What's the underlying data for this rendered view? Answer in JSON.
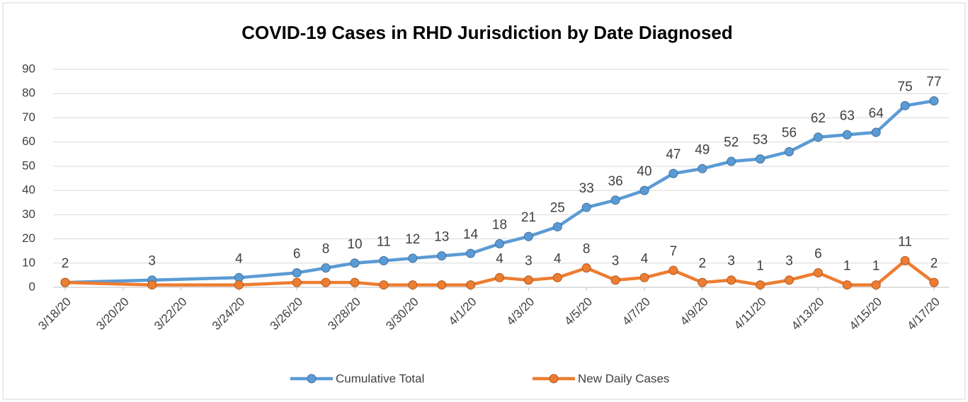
{
  "chart_data": {
    "type": "line",
    "title": "COVID-19 Cases in RHD Jurisdiction by Date Diagnosed",
    "x": [
      "3/18/20",
      "3/21/20",
      "3/24/20",
      "3/26/20",
      "3/27/20",
      "3/28/20",
      "3/29/20",
      "3/30/20",
      "3/31/20",
      "4/1/20",
      "4/2/20",
      "4/3/20",
      "4/4/20",
      "4/5/20",
      "4/6/20",
      "4/7/20",
      "4/8/20",
      "4/9/20",
      "4/10/20",
      "4/11/20",
      "4/12/20",
      "4/13/20",
      "4/14/20",
      "4/15/20",
      "4/16/20",
      "4/17/20"
    ],
    "series": [
      {
        "name": "Cumulative Total",
        "color": "#5b9bd5",
        "values": [
          2,
          3,
          4,
          6,
          8,
          10,
          11,
          12,
          13,
          14,
          18,
          21,
          25,
          33,
          36,
          40,
          47,
          49,
          52,
          53,
          56,
          62,
          63,
          64,
          75,
          77
        ],
        "value_labels": [
          2,
          3,
          4,
          6,
          8,
          10,
          11,
          12,
          13,
          14,
          18,
          21,
          25,
          33,
          36,
          40,
          47,
          49,
          52,
          53,
          56,
          62,
          63,
          64,
          75,
          77
        ]
      },
      {
        "name": "New Daily Cases",
        "color": "#ed7d31",
        "values": [
          2,
          1,
          1,
          2,
          2,
          2,
          1,
          1,
          1,
          1,
          4,
          3,
          4,
          8,
          3,
          4,
          7,
          2,
          3,
          1,
          3,
          6,
          1,
          1,
          11,
          2
        ],
        "value_labels": [
          null,
          null,
          null,
          null,
          null,
          null,
          null,
          null,
          null,
          null,
          4,
          3,
          4,
          8,
          3,
          4,
          7,
          2,
          3,
          1,
          3,
          6,
          1,
          1,
          11,
          2
        ]
      }
    ],
    "xlim": [
      "3/18/20",
      "4/17/20"
    ],
    "xticks": [
      "3/18/20",
      "3/20/20",
      "3/22/20",
      "3/24/20",
      "3/26/20",
      "3/28/20",
      "3/30/20",
      "4/1/20",
      "4/3/20",
      "4/5/20",
      "4/7/20",
      "4/9/20",
      "4/11/20",
      "4/13/20",
      "4/15/20",
      "4/17/20"
    ],
    "ylim": [
      0,
      90
    ],
    "yticks": [
      0,
      10,
      20,
      30,
      40,
      50,
      60,
      70,
      80,
      90
    ],
    "grid": true,
    "legend": "bottom"
  }
}
